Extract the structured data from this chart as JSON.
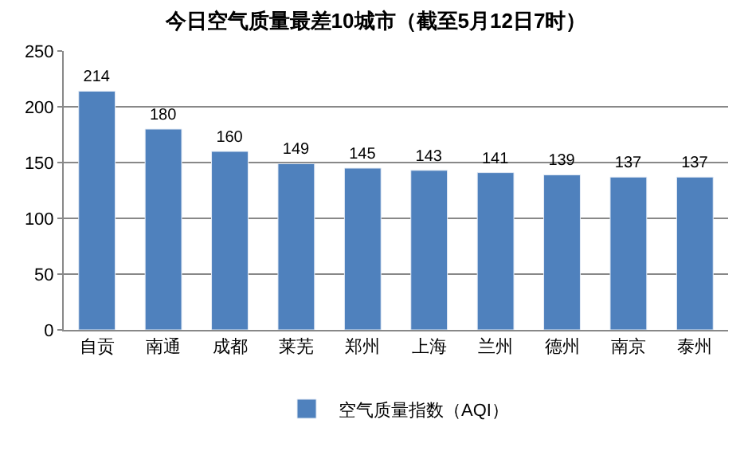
{
  "chart_data": {
    "type": "bar",
    "title": "今日空气质量最差10城市（截至5月12日7时）",
    "categories": [
      "自贡",
      "南通",
      "成都",
      "莱芜",
      "郑州",
      "上海",
      "兰州",
      "德州",
      "南京",
      "泰州"
    ],
    "series": [
      {
        "name": "空气质量指数（AQI）",
        "color": "#4f81bd",
        "values": [
          214,
          180,
          160,
          149,
          145,
          143,
          141,
          139,
          137,
          137
        ]
      }
    ],
    "ylim": [
      0,
      250
    ],
    "yticks": [
      0,
      50,
      100,
      150,
      200,
      250
    ],
    "grid": "y",
    "legend": "bottom",
    "data_labels": true
  }
}
